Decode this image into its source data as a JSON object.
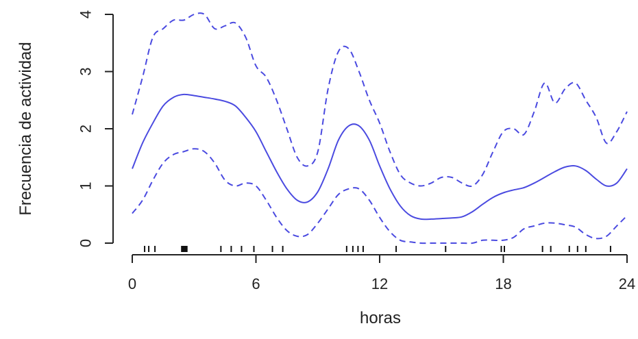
{
  "chart_data": {
    "type": "line",
    "title": "",
    "xlabel": "horas",
    "ylabel": "Frecuencia de actividad",
    "xlim": [
      0,
      24
    ],
    "ylim": [
      0,
      4
    ],
    "x_ticks": [
      0,
      6,
      12,
      18,
      24
    ],
    "x_tick_labels": [
      "0",
      "6",
      "12",
      "18",
      "24"
    ],
    "y_ticks": [
      0,
      1,
      2,
      3,
      4
    ],
    "y_tick_labels": [
      "0",
      "1",
      "2",
      "3",
      "4"
    ],
    "grid": false,
    "legend": "none",
    "series_color": "#4a4ae0",
    "series": [
      {
        "style": "solid",
        "x": [
          0,
          0.5,
          1,
          1.5,
          2,
          2.5,
          3,
          3.5,
          4,
          4.5,
          5,
          5.5,
          6,
          6.5,
          7,
          7.5,
          8,
          8.5,
          9,
          9.5,
          10,
          10.5,
          11,
          11.5,
          12,
          12.5,
          13,
          13.5,
          14,
          14.5,
          15,
          15.5,
          16,
          16.5,
          17,
          17.5,
          18,
          18.5,
          19,
          19.5,
          20,
          20.5,
          21,
          21.5,
          22,
          22.5,
          23,
          23.5,
          24
        ],
        "y": [
          1.3,
          1.75,
          2.1,
          2.4,
          2.55,
          2.6,
          2.58,
          2.55,
          2.52,
          2.48,
          2.4,
          2.2,
          1.95,
          1.6,
          1.25,
          0.95,
          0.75,
          0.72,
          0.9,
          1.3,
          1.8,
          2.05,
          2.05,
          1.8,
          1.35,
          0.95,
          0.65,
          0.48,
          0.42,
          0.42,
          0.43,
          0.44,
          0.46,
          0.55,
          0.68,
          0.8,
          0.88,
          0.93,
          0.97,
          1.05,
          1.15,
          1.25,
          1.33,
          1.35,
          1.27,
          1.12,
          1.0,
          1.05,
          1.3
        ]
      },
      {
        "style": "dashed",
        "x": [
          0,
          0.5,
          1,
          1.5,
          2,
          2.5,
          3,
          3.5,
          4,
          4.5,
          5,
          5.5,
          6,
          6.5,
          7,
          7.5,
          8,
          8.5,
          9,
          9.5,
          10,
          10.5,
          11,
          11.5,
          12,
          12.5,
          13,
          13.5,
          14,
          14.5,
          15,
          15.5,
          16,
          16.5,
          17,
          17.5,
          18,
          18.5,
          19,
          19.5,
          20,
          20.5,
          21,
          21.5,
          22,
          22.5,
          23,
          23.5,
          24
        ],
        "y": [
          2.25,
          2.9,
          3.6,
          3.75,
          3.9,
          3.9,
          4.0,
          4.0,
          3.75,
          3.8,
          3.85,
          3.6,
          3.1,
          2.9,
          2.5,
          2.0,
          1.5,
          1.35,
          1.6,
          2.7,
          3.35,
          3.4,
          3.0,
          2.5,
          2.1,
          1.6,
          1.2,
          1.05,
          1.0,
          1.05,
          1.15,
          1.15,
          1.05,
          1.0,
          1.2,
          1.6,
          1.95,
          2.0,
          1.9,
          2.3,
          2.8,
          2.45,
          2.7,
          2.8,
          2.5,
          2.2,
          1.75,
          1.95,
          2.3
        ]
      },
      {
        "style": "dashed",
        "x": [
          0,
          0.5,
          1,
          1.5,
          2,
          2.5,
          3,
          3.5,
          4,
          4.5,
          5,
          5.5,
          6,
          6.5,
          7,
          7.5,
          8,
          8.5,
          9,
          9.5,
          10,
          10.5,
          11,
          11.5,
          12,
          12.5,
          13,
          13.5,
          14,
          14.5,
          15,
          15.5,
          16,
          16.5,
          17,
          17.5,
          18,
          18.5,
          19,
          19.5,
          20,
          20.5,
          21,
          21.5,
          22,
          22.5,
          23,
          23.5,
          24
        ],
        "y": [
          0.52,
          0.75,
          1.1,
          1.4,
          1.55,
          1.6,
          1.65,
          1.6,
          1.4,
          1.1,
          1.0,
          1.05,
          1.0,
          0.75,
          0.45,
          0.22,
          0.12,
          0.15,
          0.35,
          0.6,
          0.85,
          0.95,
          0.95,
          0.75,
          0.45,
          0.2,
          0.05,
          0.02,
          0.0,
          0.0,
          0.0,
          0.0,
          0.0,
          0.0,
          0.05,
          0.05,
          0.05,
          0.1,
          0.25,
          0.3,
          0.35,
          0.35,
          0.32,
          0.28,
          0.15,
          0.08,
          0.12,
          0.3,
          0.48
        ]
      }
    ],
    "rug": [
      0.6,
      0.8,
      1.1,
      2.4,
      2.45,
      2.5,
      2.55,
      2.6,
      2.65,
      4.3,
      4.8,
      5.3,
      5.9,
      6.8,
      7.3,
      10.4,
      10.7,
      10.95,
      11.2,
      12.8,
      15.2,
      17.9,
      18.05,
      19.9,
      20.3,
      21.2,
      21.6,
      22.0,
      23.2
    ]
  }
}
